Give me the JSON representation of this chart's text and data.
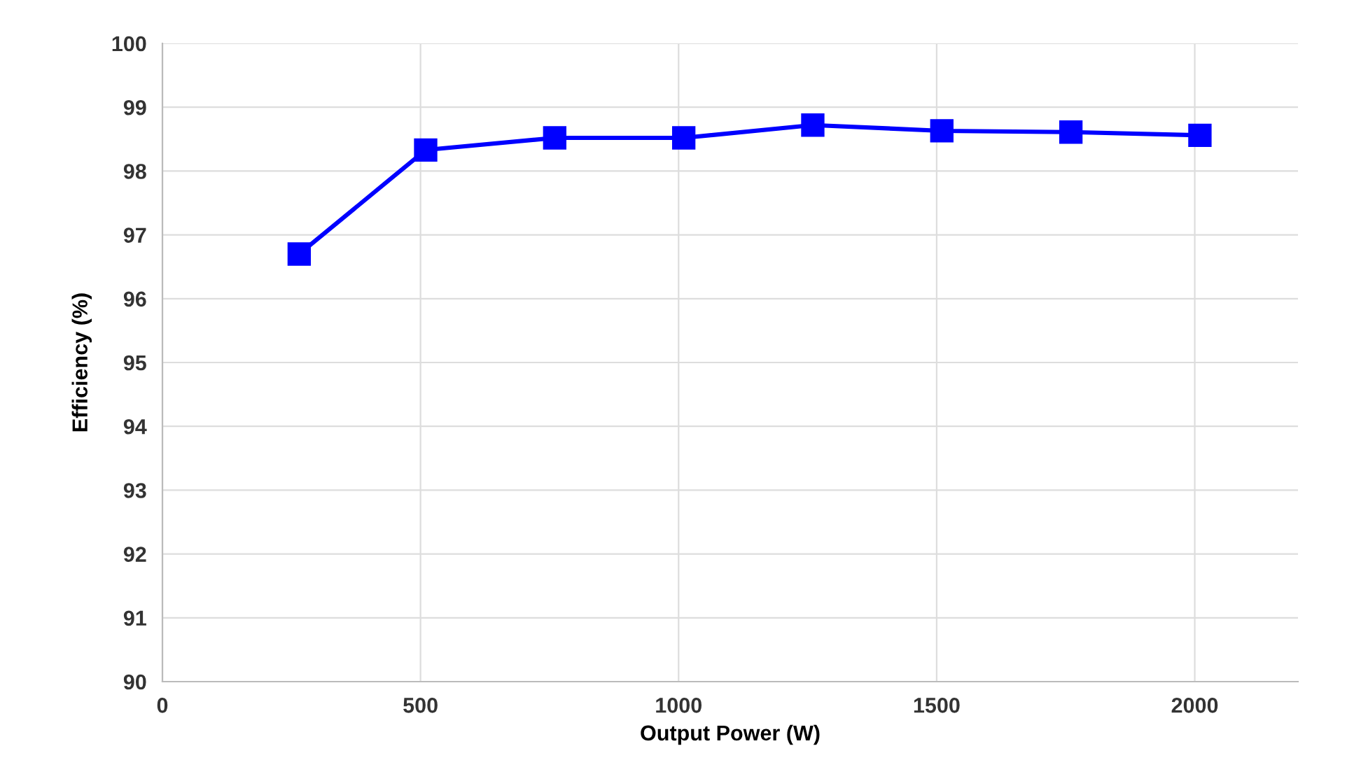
{
  "chart_data": {
    "type": "line",
    "xlabel": "Output Power (W)",
    "ylabel": "Efficiency (%)",
    "x": [
      265,
      510,
      760,
      1010,
      1260,
      1510,
      1760,
      2010
    ],
    "series": [
      {
        "color": "#0000ff",
        "values": [
          96.7,
          98.33,
          98.52,
          98.52,
          98.72,
          98.63,
          98.61,
          98.56
        ]
      }
    ],
    "xlim": [
      0,
      2200
    ],
    "xticks": [
      0,
      500,
      1000,
      1500,
      2000
    ],
    "ylim": [
      90,
      100
    ],
    "yticks": [
      90,
      91,
      92,
      93,
      94,
      95,
      96,
      97,
      98,
      99,
      100
    ],
    "grid": true,
    "marker": "square",
    "line_style": "solid",
    "legend": false
  }
}
